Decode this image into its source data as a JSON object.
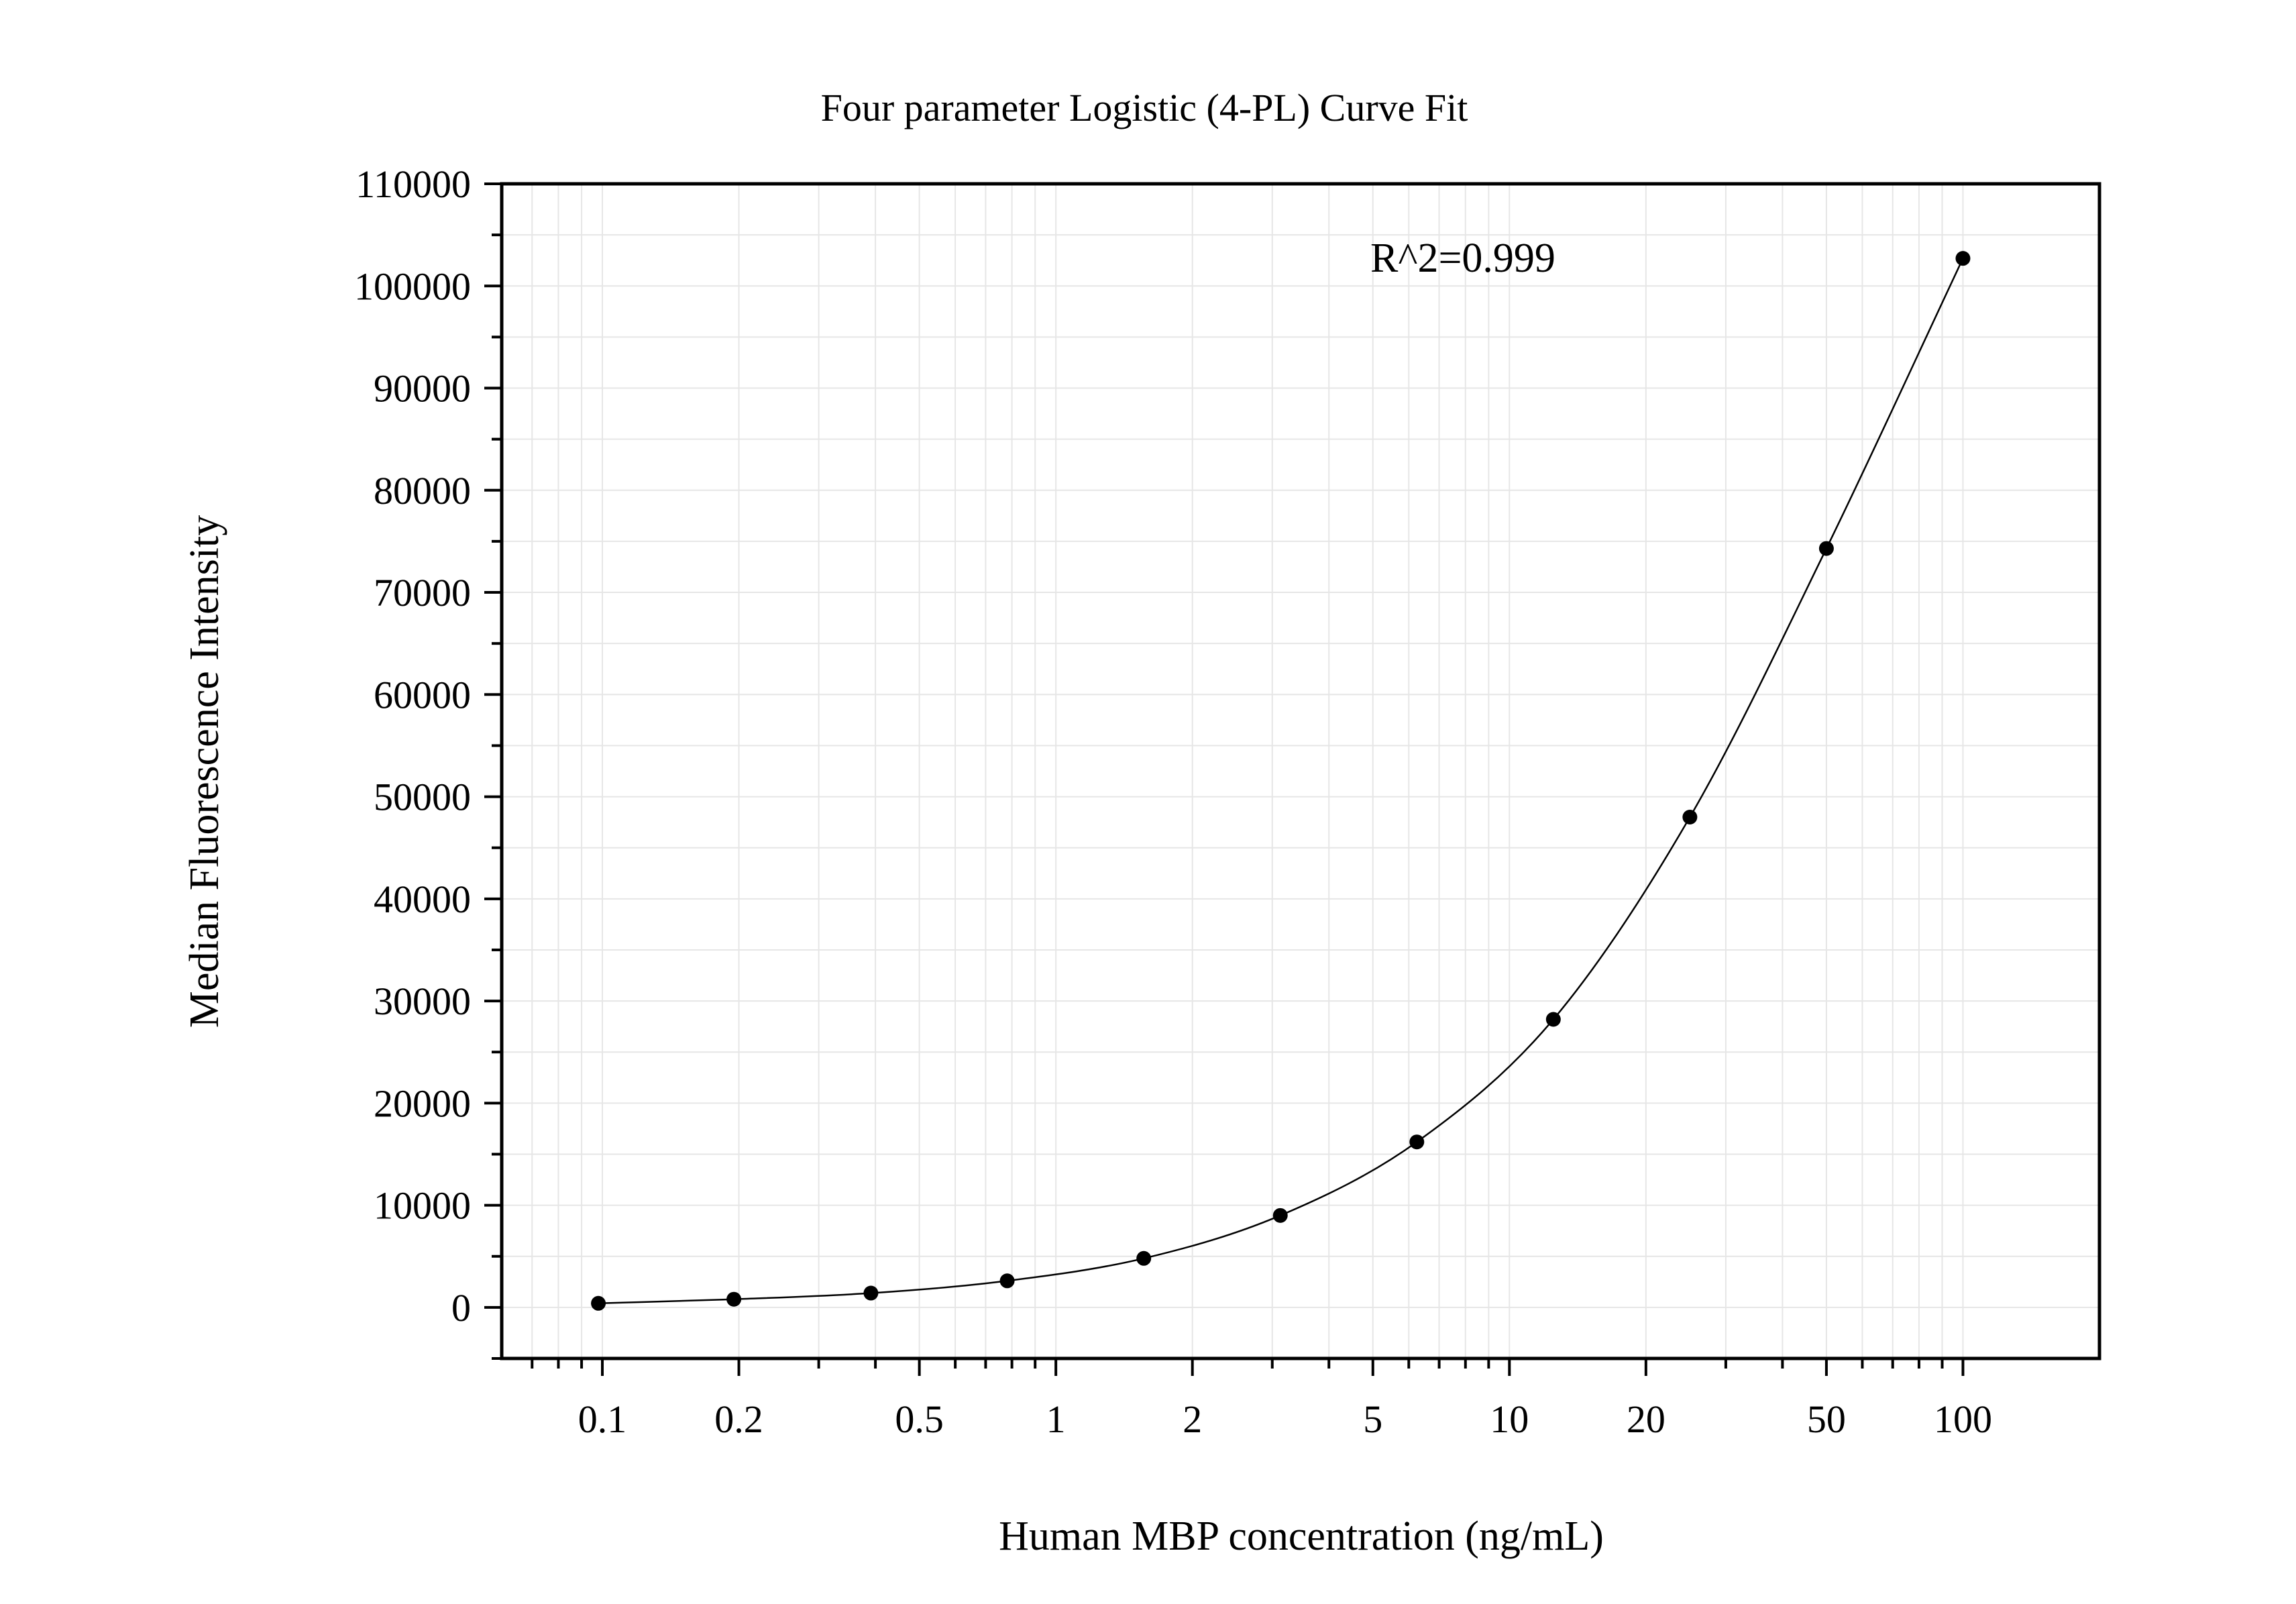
{
  "chart_data": {
    "type": "scatter",
    "title": "Four parameter Logistic (4-PL) Curve Fit",
    "xlabel": "Human MBP concentration (ng/mL)",
    "ylabel": "Median Fluorescence Intensity",
    "xscale": "log",
    "xlim": [
      0.06,
      200
    ],
    "ylim": [
      -5000,
      110000
    ],
    "xticks": [
      0.1,
      0.2,
      0.5,
      1,
      2,
      5,
      10,
      20,
      50,
      100
    ],
    "xtick_labels": [
      "0.1",
      "0.2",
      "0.5",
      "1",
      "2",
      "5",
      "10",
      "20",
      "50",
      "100"
    ],
    "yticks": [
      0,
      10000,
      20000,
      30000,
      40000,
      50000,
      60000,
      70000,
      80000,
      90000,
      100000,
      110000
    ],
    "ytick_labels": [
      "0",
      "10000",
      "20000",
      "30000",
      "40000",
      "50000",
      "60000",
      "70000",
      "80000",
      "90000",
      "100000",
      "110000"
    ],
    "grid": true,
    "annotation": "R^2=0.999",
    "points": {
      "x": [
        0.098,
        0.195,
        0.391,
        0.781,
        1.5625,
        3.125,
        6.25,
        12.5,
        25,
        50,
        100
      ],
      "y": [
        400,
        800,
        1400,
        2600,
        4800,
        9000,
        16200,
        28200,
        48000,
        74300,
        102700
      ]
    },
    "fit_curve": {
      "type": "4-PL",
      "color": "#000000"
    },
    "colors": {
      "points": "#000000",
      "grid": "#e6e6e6",
      "axes": "#000000"
    }
  }
}
